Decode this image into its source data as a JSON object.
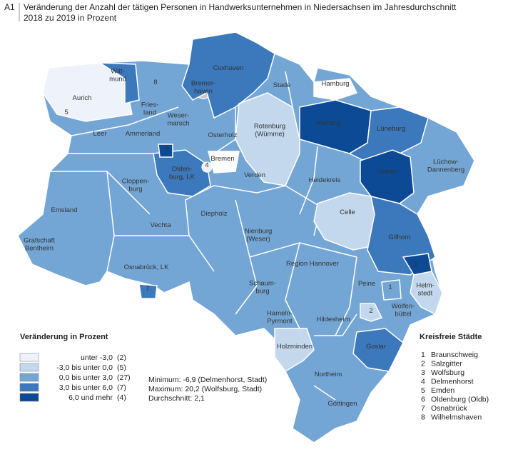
{
  "header": {
    "number": "A1",
    "title_lines": [
      "Veränderung der Anzahl der tätigen Personen in Handwerksunternehmen in Niedersachsen im Jahresdurchschnitt",
      "2018 zu 2019 in Prozent"
    ]
  },
  "legend": {
    "title": "Veränderung in Prozent",
    "classes": [
      {
        "label": "unter -3,0",
        "count": "(2)",
        "color": "#eef2fb"
      },
      {
        "label": "-3,0 bis unter 0,0",
        "count": "(5)",
        "color": "#c3d8ec"
      },
      {
        "label": "0,0 bis unter 3,0",
        "count": "(27)",
        "color": "#74a6d5"
      },
      {
        "label": "3,0 bis unter 6,0",
        "count": "(7)",
        "color": "#3c78bc"
      },
      {
        "label": "6,0 und mehr",
        "count": "(4)",
        "color": "#0d4a96"
      }
    ]
  },
  "stats": [
    "Minimum: -6,9 (Delmenhorst, Stadt)",
    "Maximum: 20,2 (Wolfsburg, Stadt)",
    "Durchschnitt: 2,1"
  ],
  "cities": {
    "title": "Kreisfreie Städte",
    "items": [
      {
        "number": "1",
        "name": "Braunschweig"
      },
      {
        "number": "2",
        "name": "Salzgitter"
      },
      {
        "number": "3",
        "name": "Wolfsburg"
      },
      {
        "number": "4",
        "name": "Delmenhorst"
      },
      {
        "number": "5",
        "name": "Emden"
      },
      {
        "number": "6",
        "name": "Oldenburg (Oldb)"
      },
      {
        "number": "7",
        "name": "Osnabrück"
      },
      {
        "number": "8",
        "name": "Wilhelmshaven"
      }
    ]
  },
  "regions": [
    {
      "label": "Aurich",
      "class": 0
    },
    {
      "label": "Witt-\nmund",
      "class": 3
    },
    {
      "label": "8",
      "class": 2
    },
    {
      "label": "Fries-\nland",
      "class": 2
    },
    {
      "label": "Leer",
      "class": 2
    },
    {
      "label": "Ammerland",
      "class": 2
    },
    {
      "label": "Weser-\nmarsch",
      "class": 2
    },
    {
      "label": "Bremer-\nhaven",
      "class": null
    },
    {
      "label": "Cuxhaven",
      "class": 3
    },
    {
      "label": "Stade",
      "class": 2
    },
    {
      "label": "Hamburg",
      "class": null
    },
    {
      "label": "Osterholz",
      "class": 2
    },
    {
      "label": "Rotenburg\n(Wümme)",
      "class": 1
    },
    {
      "label": "Harburg",
      "class": 4
    },
    {
      "label": "Lüneburg",
      "class": 3
    },
    {
      "label": "Lüchow-\nDannenberg",
      "class": 2
    },
    {
      "label": "Uelzen",
      "class": 4
    },
    {
      "label": "Heidekreis",
      "class": 2
    },
    {
      "label": "Celle",
      "class": 1
    },
    {
      "label": "Gifhorn",
      "class": 3
    },
    {
      "label": "Bremen",
      "class": null
    },
    {
      "label": "Verden",
      "class": 2
    },
    {
      "label": "Olden-\nburg, LK",
      "class": 3
    },
    {
      "label": "Cloppen-\nburg",
      "class": 2
    },
    {
      "label": "Emsland",
      "class": 2
    },
    {
      "label": "Diepholz",
      "class": 2
    },
    {
      "label": "Vechta",
      "class": 2
    },
    {
      "label": "Nienburg\n(Weser)",
      "class": 2
    },
    {
      "label": "Grafschaft\nBentheim",
      "class": 2
    },
    {
      "label": "Osnabrück, LK",
      "class": 2
    },
    {
      "label": "Region Hannover",
      "class": 2
    },
    {
      "label": "Schaum-\nburg",
      "class": 2
    },
    {
      "label": "Peine",
      "class": 2
    },
    {
      "label": "Helm-\nstedt",
      "class": 1
    },
    {
      "label": "Hameln-\nPyrmont",
      "class": 2
    },
    {
      "label": "Hildesheim",
      "class": 2
    },
    {
      "label": "Wolfen-\nbüttel",
      "class": 2
    },
    {
      "label": "Holzminden",
      "class": 1
    },
    {
      "label": "Goslar",
      "class": 3
    },
    {
      "label": "Northeim",
      "class": 2
    },
    {
      "label": "Göttingen",
      "class": 2
    },
    {
      "label": "1",
      "class": 2
    },
    {
      "label": "2",
      "class": 1
    },
    {
      "label": "3",
      "class": 4
    },
    {
      "label": "4",
      "class": 0
    },
    {
      "label": "5",
      "class": 2
    },
    {
      "label": "6",
      "class": 4
    },
    {
      "label": "7",
      "class": 3
    }
  ]
}
